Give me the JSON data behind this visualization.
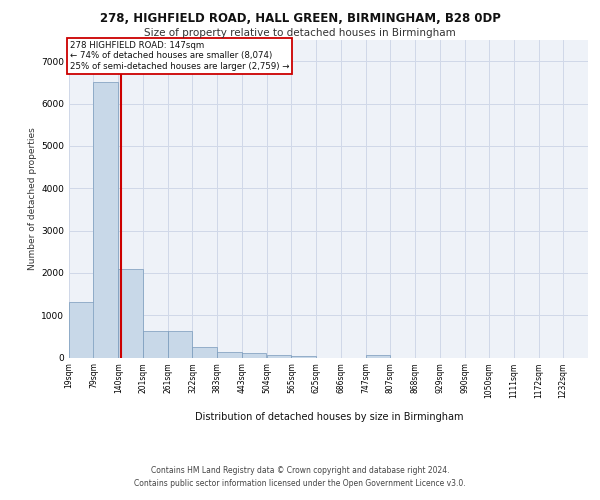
{
  "title_line1": "278, HIGHFIELD ROAD, HALL GREEN, BIRMINGHAM, B28 0DP",
  "title_line2": "Size of property relative to detached houses in Birmingham",
  "xlabel": "Distribution of detached houses by size in Birmingham",
  "ylabel": "Number of detached properties",
  "footer_line1": "Contains HM Land Registry data © Crown copyright and database right 2024.",
  "footer_line2": "Contains public sector information licensed under the Open Government Licence v3.0.",
  "annotation_line1": "278 HIGHFIELD ROAD: 147sqm",
  "annotation_line2": "← 74% of detached houses are smaller (8,074)",
  "annotation_line3": "25% of semi-detached houses are larger (2,759) →",
  "bar_color": "#c8d8e8",
  "bar_edge_color": "#7799bb",
  "grid_color": "#d0d8e8",
  "background_color": "#eef2f8",
  "vline_color": "#cc0000",
  "vline_x": 147,
  "categories": [
    "19sqm",
    "79sqm",
    "140sqm",
    "201sqm",
    "261sqm",
    "322sqm",
    "383sqm",
    "443sqm",
    "504sqm",
    "565sqm",
    "625sqm",
    "686sqm",
    "747sqm",
    "807sqm",
    "868sqm",
    "929sqm",
    "990sqm",
    "1050sqm",
    "1111sqm",
    "1172sqm",
    "1232sqm"
  ],
  "bin_edges": [
    19,
    79,
    140,
    201,
    261,
    322,
    383,
    443,
    504,
    565,
    625,
    686,
    747,
    807,
    868,
    929,
    990,
    1050,
    1111,
    1172,
    1232
  ],
  "bin_width": 61,
  "values": [
    1300,
    6500,
    2100,
    620,
    620,
    250,
    130,
    110,
    70,
    30,
    0,
    0,
    70,
    0,
    0,
    0,
    0,
    0,
    0,
    0,
    0
  ],
  "ylim": [
    0,
    7500
  ],
  "yticks": [
    0,
    1000,
    2000,
    3000,
    4000,
    5000,
    6000,
    7000
  ]
}
